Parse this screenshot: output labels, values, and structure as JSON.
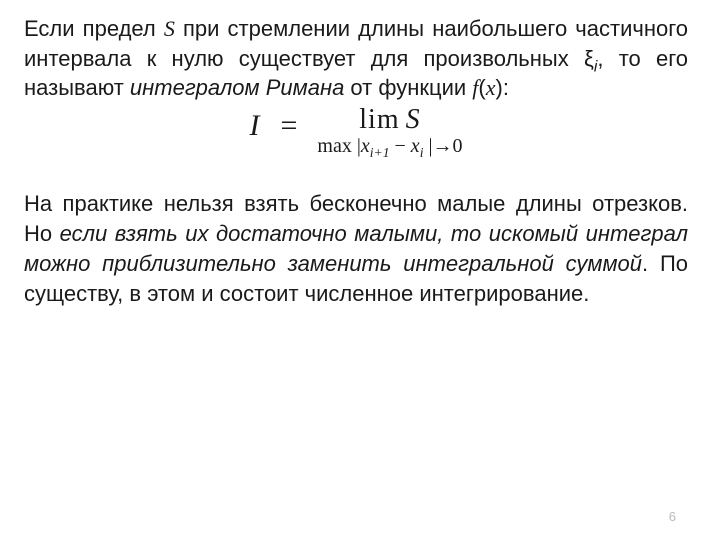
{
  "paragraph1": {
    "part1": "Если предел ",
    "S": "S",
    "part2": " при стремлении длины наибольшего частичного интервала к нулю существует для произвольных ",
    "xi": "ξ",
    "xi_sub": "i",
    "part3": ", то его называют ",
    "riemann_integral": "интегралом Римана",
    "part4": " от функции ",
    "f": "f",
    "paren_open": "(",
    "x": "x",
    "paren_close": "):"
  },
  "formula": {
    "I": "I",
    "eq": "=",
    "lim": "lim",
    "S": "S",
    "subscript": {
      "max": "max",
      "bar1": "|",
      "x1": "x",
      "i1": "i+1",
      "minus": " − ",
      "x2": "x",
      "i2": "i",
      "bar2": "|",
      "arrow": "→0"
    }
  },
  "paragraph2": {
    "part1": "На практике нельзя взять бесконечно малые длины отрезков. Но ",
    "ital": "если взять их достаточно малыми, то искомый интеграл можно приблизительно заменить интегральной суммой",
    "part2": ". По существу, в этом и состоит численное интегрирование."
  },
  "page_number": "6"
}
